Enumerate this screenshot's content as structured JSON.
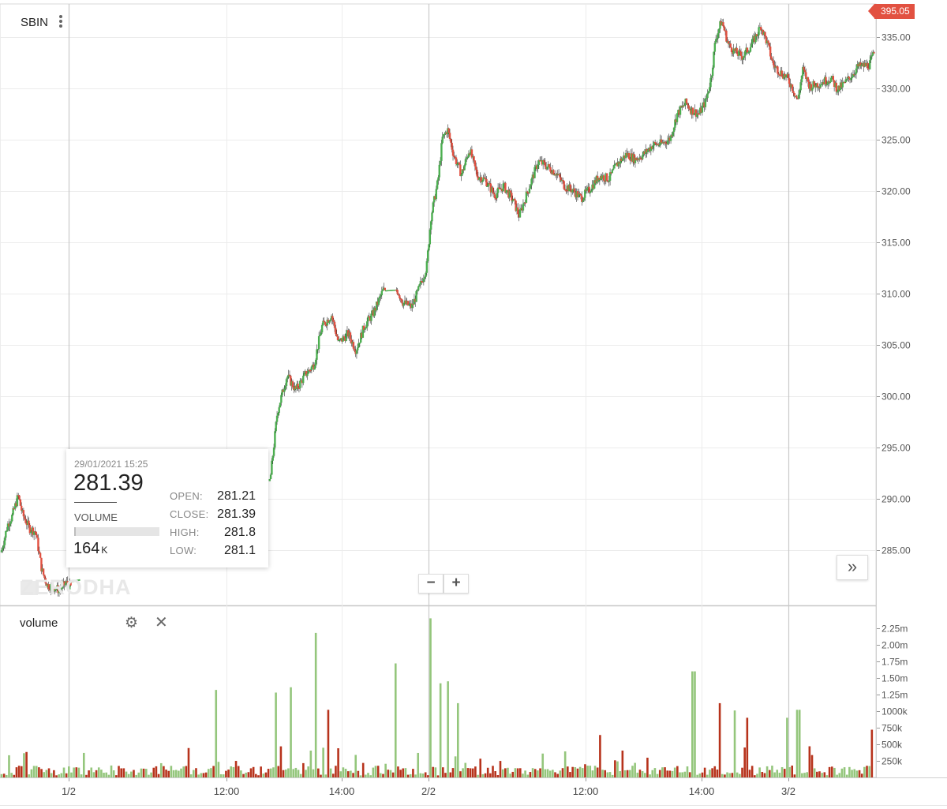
{
  "symbol": "SBIN",
  "last_price_tag": "395.05",
  "tooltip": {
    "datetime": "29/01/2021 15:25",
    "price": "281.39",
    "volume_label": "VOLUME",
    "volume_value": "164",
    "volume_unit": "K",
    "volume_fill": 0.02,
    "open_label": "OPEN:",
    "open": "281.21",
    "close_label": "CLOSE:",
    "close": "281.39",
    "high_label": "HIGH:",
    "high": "281.8",
    "low_label": "LOW:",
    "low": "281.1"
  },
  "watermark": "ZERODHA",
  "zoom": {
    "minus": "−",
    "plus": "+"
  },
  "go_end": "»",
  "volume_pane": {
    "label": "volume",
    "settings_icon": "gear-icon",
    "close_icon": "close-icon",
    "close_glyph": "✕",
    "gear_glyph": "⚙"
  },
  "colors": {
    "up": "#4caf50",
    "down": "#e25141",
    "vol_up": "#94c67c",
    "vol_down": "#b7331c",
    "grid": "#ececec"
  },
  "chart_data": [
    {
      "type": "line",
      "name": "price",
      "x_ticks": [
        "1/2",
        "12:00",
        "14:00",
        "2/2",
        "12:00",
        "14:00",
        "3/2"
      ],
      "y_ticks": [
        "285.00",
        "290.00",
        "295.00",
        "300.00",
        "305.00",
        "310.00",
        "315.00",
        "320.00",
        "325.00",
        "330.00",
        "335.00"
      ],
      "ylim": [
        280.5,
        337.5
      ],
      "x_range": [
        0,
        100
      ],
      "grid": true,
      "points": [
        [
          0,
          285
        ],
        [
          0.7,
          287.5
        ],
        [
          1.2,
          288.3
        ],
        [
          1.9,
          290.3
        ],
        [
          2.4,
          288.5
        ],
        [
          3.2,
          287.1
        ],
        [
          3.9,
          286.8
        ],
        [
          4.6,
          283.1
        ],
        [
          5.2,
          281.6
        ],
        [
          5.9,
          281.4
        ],
        [
          6.6,
          281.1
        ],
        [
          7.4,
          281.8
        ],
        [
          7.9,
          281.39
        ],
        [
          11.8,
          282.3
        ],
        [
          18.8,
          284.8
        ],
        [
          24.5,
          287.8
        ],
        [
          29.5,
          290.8
        ],
        [
          30.8,
          292
        ],
        [
          31.6,
          298.5
        ],
        [
          32.7,
          302
        ],
        [
          33.7,
          300.6
        ],
        [
          34.8,
          302.1
        ],
        [
          35.8,
          303.1
        ],
        [
          36.7,
          306.8
        ],
        [
          37.8,
          307.9
        ],
        [
          38.6,
          305.2
        ],
        [
          39.7,
          306.1
        ],
        [
          40.6,
          304.5
        ],
        [
          41.6,
          306.9
        ],
        [
          42.6,
          308.1
        ],
        [
          43.7,
          310.3
        ],
        [
          45.3,
          310.4
        ],
        [
          46.0,
          309.1
        ],
        [
          47.0,
          308.7
        ],
        [
          47.7,
          310.2
        ],
        [
          48.7,
          312.6
        ],
        [
          49.2,
          317.5
        ],
        [
          50.0,
          321
        ],
        [
          50.5,
          325.1
        ],
        [
          51.1,
          326
        ],
        [
          51.8,
          323.5
        ],
        [
          52.7,
          321.6
        ],
        [
          53.6,
          324.1
        ],
        [
          54.5,
          321.5
        ],
        [
          55.4,
          321.1
        ],
        [
          56.5,
          319.6
        ],
        [
          57.5,
          320.5
        ],
        [
          58.6,
          319.1
        ],
        [
          59.3,
          317.6
        ],
        [
          60.5,
          320.5
        ],
        [
          61.5,
          322.9
        ],
        [
          62.5,
          322.4
        ],
        [
          63.5,
          321.8
        ],
        [
          64.5,
          320.5
        ],
        [
          65.4,
          320.1
        ],
        [
          66.4,
          319.3
        ],
        [
          67.4,
          320.2
        ],
        [
          68.5,
          321.5
        ],
        [
          69.6,
          321.2
        ],
        [
          70.5,
          322.6
        ],
        [
          71.6,
          323.6
        ],
        [
          72.6,
          323.1
        ],
        [
          73.6,
          323.6
        ],
        [
          74.6,
          324.5
        ],
        [
          75.6,
          324.6
        ],
        [
          76.6,
          325.1
        ],
        [
          77.4,
          327.5
        ],
        [
          78.4,
          328.6
        ],
        [
          79.0,
          327.9
        ],
        [
          79.9,
          327.5
        ],
        [
          80.7,
          328.8
        ],
        [
          81.3,
          331.1
        ],
        [
          81.8,
          334.8
        ],
        [
          82.5,
          336.6
        ],
        [
          83.3,
          334.2
        ],
        [
          84.1,
          333.5
        ],
        [
          84.9,
          333.1
        ],
        [
          85.8,
          334.1
        ],
        [
          86.5,
          335.2
        ],
        [
          87.0,
          336.1
        ],
        [
          87.8,
          334.2
        ],
        [
          88.4,
          332.3
        ],
        [
          89.2,
          331.6
        ],
        [
          89.9,
          331.1
        ],
        [
          90.5,
          330.3
        ],
        [
          91.2,
          328.8
        ],
        [
          91.8,
          331.8
        ],
        [
          92.6,
          330.2
        ],
        [
          93.4,
          330.4
        ],
        [
          94.2,
          330.7
        ],
        [
          95.0,
          331.0
        ],
        [
          95.8,
          329.9
        ],
        [
          96.6,
          330.5
        ],
        [
          97.3,
          331.2
        ],
        [
          98.1,
          332.1
        ],
        [
          98.8,
          332.2
        ],
        [
          99.4,
          332.3
        ],
        [
          100,
          333.5
        ]
      ]
    },
    {
      "type": "bar",
      "name": "volume",
      "x_ticks": [
        "1/2",
        "12:00",
        "14:00",
        "2/2",
        "12:00",
        "14:00",
        "3/2"
      ],
      "y_ticks": [
        "250k",
        "500k",
        "750k",
        "1000k",
        "1.25m",
        "1.50m",
        "1.75m",
        "2.00m",
        "2.25m"
      ],
      "ylim": [
        0,
        2.3
      ],
      "units": "millions",
      "bars_count": 350,
      "spikes": [
        [
          24.5,
          1.32
        ],
        [
          31.5,
          1.28
        ],
        [
          33.2,
          1.36
        ],
        [
          36.0,
          2.18
        ],
        [
          37.5,
          1.02
        ],
        [
          45.2,
          1.72
        ],
        [
          49.1,
          2.4
        ],
        [
          50.3,
          1.42
        ],
        [
          51.1,
          1.45
        ],
        [
          52.3,
          1.12
        ],
        [
          68.5,
          0.64
        ],
        [
          79.3,
          1.6
        ],
        [
          82.2,
          1.12
        ],
        [
          84.0,
          1.01
        ],
        [
          85.4,
          0.9
        ],
        [
          90.0,
          0.9
        ],
        [
          91.3,
          1.02
        ],
        [
          99.7,
          0.72
        ]
      ]
    }
  ]
}
